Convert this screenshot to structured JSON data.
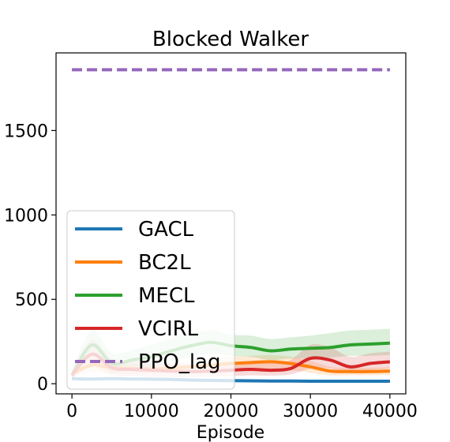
{
  "chart_data": {
    "type": "line",
    "title": "Blocked Walker",
    "xlabel": "Episode",
    "ylabel": "",
    "xlim": [
      -2000,
      42000
    ],
    "ylim": [
      -60,
      1960
    ],
    "xticks": [
      0,
      10000,
      20000,
      30000,
      40000
    ],
    "yticks": [
      0,
      500,
      1000,
      1500
    ],
    "grid": false,
    "legend": {
      "placement": "lower-left"
    },
    "series": [
      {
        "name": "GACL",
        "color": "#1f77b4",
        "style": "solid",
        "x": [
          0,
          2500,
          5000,
          7500,
          10000,
          12500,
          15000,
          17500,
          20000,
          22500,
          25000,
          27500,
          30000,
          32500,
          35000,
          37500,
          40000
        ],
        "y": [
          30,
          28,
          30,
          28,
          27,
          25,
          22,
          20,
          18,
          17,
          16,
          16,
          15,
          15,
          15,
          15,
          15
        ],
        "lower": [
          22,
          20,
          22,
          20,
          19,
          17,
          15,
          13,
          12,
          11,
          10,
          10,
          10,
          10,
          10,
          10,
          10
        ],
        "upper": [
          40,
          38,
          40,
          38,
          36,
          34,
          30,
          28,
          26,
          24,
          22,
          22,
          21,
          21,
          21,
          21,
          21
        ]
      },
      {
        "name": "BC2L",
        "color": "#ff7f0e",
        "style": "solid",
        "x": [
          0,
          2500,
          5000,
          7500,
          10000,
          12500,
          15000,
          17500,
          20000,
          22500,
          25000,
          27500,
          30000,
          32500,
          35000,
          37500,
          40000
        ],
        "y": [
          60,
          110,
          95,
          90,
          88,
          92,
          100,
          110,
          120,
          125,
          130,
          120,
          100,
          75,
          72,
          72,
          75
        ],
        "lower": [
          40,
          70,
          60,
          60,
          60,
          65,
          70,
          75,
          80,
          85,
          90,
          80,
          65,
          50,
          50,
          50,
          52
        ],
        "upper": [
          85,
          150,
          130,
          120,
          115,
          120,
          135,
          150,
          160,
          165,
          170,
          160,
          135,
          100,
          95,
          95,
          98
        ]
      },
      {
        "name": "MECL",
        "color": "#2ca02c",
        "style": "solid",
        "x": [
          0,
          2500,
          5000,
          7500,
          10000,
          12500,
          15000,
          17500,
          20000,
          22500,
          25000,
          27500,
          30000,
          32500,
          35000,
          37500,
          40000
        ],
        "y": [
          50,
          230,
          120,
          140,
          160,
          195,
          225,
          245,
          225,
          215,
          195,
          205,
          210,
          215,
          230,
          235,
          240
        ],
        "lower": [
          30,
          150,
          70,
          85,
          100,
          130,
          160,
          180,
          165,
          160,
          140,
          150,
          150,
          155,
          165,
          165,
          170
        ],
        "upper": [
          80,
          320,
          180,
          200,
          230,
          270,
          295,
          315,
          290,
          285,
          265,
          275,
          285,
          300,
          315,
          320,
          325
        ]
      },
      {
        "name": "VCIRL",
        "color": "#d62728",
        "style": "solid",
        "x": [
          0,
          2500,
          5000,
          7500,
          10000,
          12500,
          15000,
          17500,
          20000,
          22500,
          25000,
          27500,
          30000,
          32500,
          35000,
          37500,
          40000
        ],
        "y": [
          50,
          175,
          95,
          85,
          80,
          75,
          72,
          75,
          80,
          85,
          80,
          90,
          150,
          140,
          100,
          120,
          130
        ],
        "lower": [
          30,
          100,
          50,
          45,
          40,
          40,
          40,
          42,
          45,
          50,
          48,
          55,
          90,
          90,
          65,
          80,
          88
        ],
        "upper": [
          80,
          260,
          150,
          140,
          130,
          120,
          115,
          118,
          125,
          130,
          125,
          140,
          230,
          215,
          160,
          180,
          190
        ]
      },
      {
        "name": "PPO_lag",
        "color": "#9467bd",
        "style": "dashed",
        "x": [
          0,
          40000
        ],
        "y": [
          1860,
          1860
        ]
      }
    ]
  }
}
